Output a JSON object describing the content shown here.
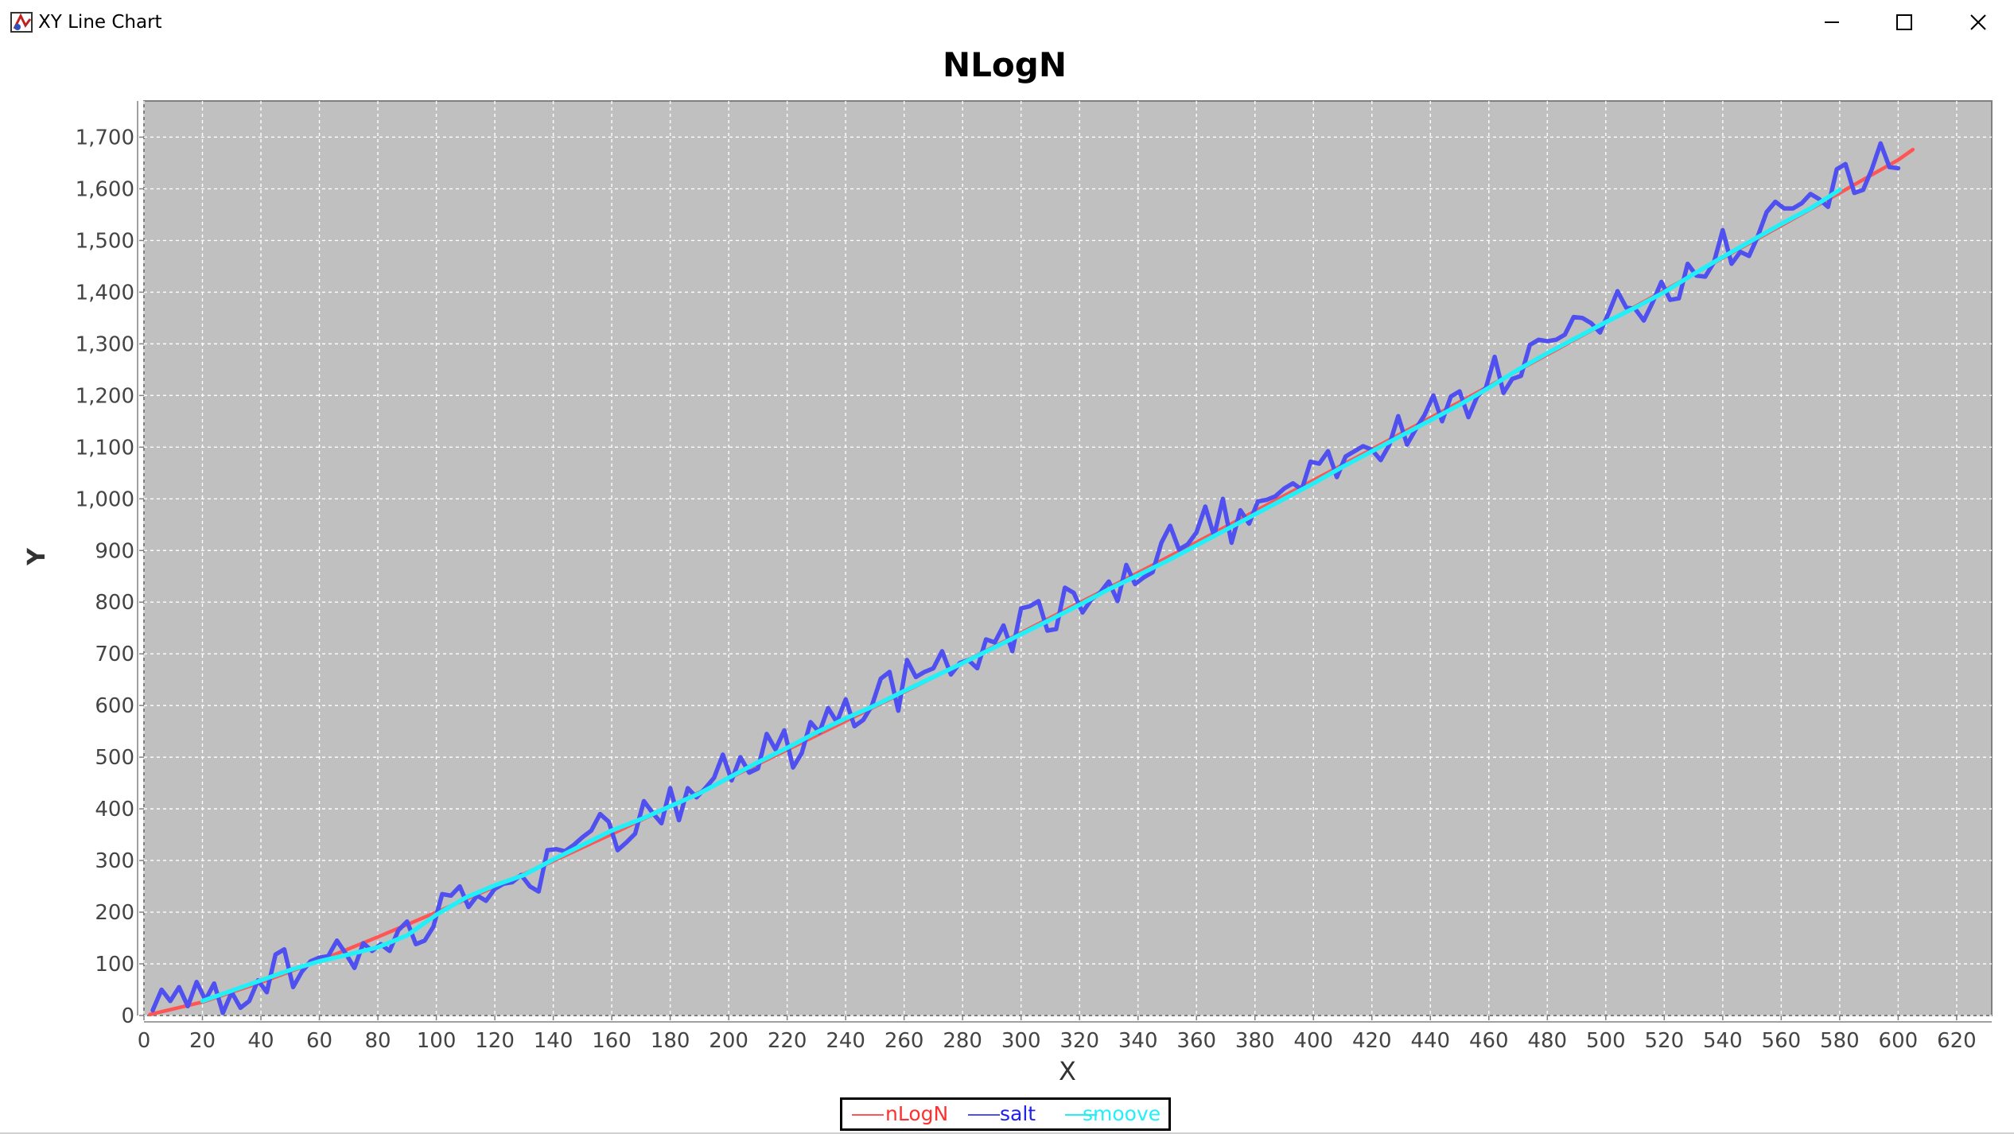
{
  "window": {
    "title": "XY Line Chart",
    "icon": "java-app-icon",
    "controls": [
      "minimize-icon",
      "maximize-icon",
      "close-icon"
    ]
  },
  "chart_data": {
    "type": "line",
    "title": "NLogN",
    "xlabel": "X",
    "ylabel": "Y",
    "xlim": [
      0,
      632
    ],
    "ylim": [
      0,
      1770
    ],
    "x_ticks": [
      0,
      20,
      40,
      60,
      80,
      100,
      120,
      140,
      160,
      180,
      200,
      220,
      240,
      260,
      280,
      300,
      320,
      340,
      360,
      380,
      400,
      420,
      440,
      460,
      480,
      500,
      520,
      540,
      560,
      580,
      600,
      620
    ],
    "y_ticks": [
      0,
      100,
      200,
      300,
      400,
      500,
      600,
      700,
      800,
      900,
      1000,
      1100,
      1200,
      1300,
      1400,
      1500,
      1600,
      1700
    ],
    "y_tick_labels": [
      "0",
      "100",
      "200",
      "300",
      "400",
      "500",
      "600",
      "700",
      "800",
      "900",
      "1,000",
      "1,100",
      "1,200",
      "1,300",
      "1,400",
      "1,500",
      "1,600",
      "1,700"
    ],
    "grid": true,
    "background": "#c0c0c0",
    "legend_position": "bottom",
    "series": [
      {
        "name": "nLogN",
        "color": "#ff5555",
        "x": [
          2,
          20,
          40,
          60,
          80,
          100,
          120,
          140,
          160,
          180,
          200,
          220,
          240,
          260,
          280,
          300,
          320,
          340,
          360,
          380,
          400,
          420,
          440,
          460,
          480,
          500,
          520,
          540,
          560,
          580,
          600,
          605
        ],
        "values": [
          2,
          26,
          64,
          106,
          152,
          200,
          249,
          299,
          351,
          405,
          459,
          514,
          570,
          626,
          683,
          741,
          799,
          857,
          916,
          976,
          1036,
          1096,
          1157,
          1218,
          1279,
          1341,
          1403,
          1466,
          1529,
          1592,
          1656,
          1676
        ]
      },
      {
        "name": "salt",
        "color": "#5050f0",
        "x": [
          3,
          6,
          9,
          12,
          15,
          18,
          21,
          24,
          27,
          30,
          33,
          36,
          39,
          42,
          45,
          48,
          51,
          54,
          57,
          60,
          63,
          66,
          69,
          72,
          75,
          78,
          81,
          84,
          87,
          90,
          93,
          96,
          99,
          102,
          105,
          108,
          111,
          114,
          117,
          120,
          123,
          126,
          129,
          132,
          135,
          138,
          141,
          144,
          147,
          150,
          153,
          156,
          159,
          162,
          165,
          168,
          171,
          174,
          177,
          180,
          183,
          186,
          189,
          192,
          195,
          198,
          201,
          204,
          207,
          210,
          213,
          216,
          219,
          222,
          225,
          228,
          231,
          234,
          237,
          240,
          243,
          246,
          249,
          252,
          255,
          258,
          261,
          264,
          267,
          270,
          273,
          276,
          279,
          282,
          285,
          288,
          291,
          294,
          297,
          300,
          303,
          306,
          309,
          312,
          315,
          318,
          321,
          324,
          327,
          330,
          333,
          336,
          339,
          342,
          345,
          348,
          351,
          354,
          357,
          360,
          363,
          366,
          369,
          372,
          375,
          378,
          381,
          384,
          387,
          390,
          393,
          396,
          399,
          402,
          405,
          408,
          411,
          414,
          417,
          420,
          423,
          426,
          429,
          432,
          435,
          438,
          441,
          444,
          447,
          450,
          453,
          456,
          459,
          462,
          465,
          468,
          471,
          474,
          477,
          480,
          483,
          486,
          489,
          492,
          495,
          498,
          501,
          504,
          507,
          510,
          513,
          516,
          519,
          522,
          525,
          528,
          531,
          534,
          537,
          540,
          543,
          546,
          549,
          552,
          555,
          558,
          561,
          564,
          567,
          570,
          573,
          576,
          579,
          582,
          585,
          588,
          591,
          594,
          597,
          600
        ],
        "values": [
          10,
          50,
          28,
          55,
          18,
          65,
          30,
          62,
          5,
          45,
          15,
          28,
          68,
          45,
          118,
          128,
          55,
          85,
          105,
          112,
          115,
          145,
          120,
          92,
          140,
          125,
          138,
          125,
          165,
          182,
          138,
          145,
          172,
          235,
          232,
          250,
          210,
          232,
          222,
          245,
          255,
          258,
          272,
          250,
          240,
          320,
          322,
          318,
          330,
          345,
          358,
          390,
          375,
          320,
          335,
          352,
          415,
          392,
          372,
          440,
          378,
          440,
          422,
          440,
          460,
          505,
          455,
          500,
          470,
          478,
          545,
          515,
          552,
          480,
          508,
          568,
          548,
          595,
          568,
          612,
          560,
          572,
          600,
          652,
          665,
          590,
          688,
          655,
          665,
          672,
          705,
          660,
          682,
          688,
          672,
          728,
          722,
          755,
          705,
          788,
          792,
          802,
          745,
          748,
          828,
          818,
          780,
          805,
          818,
          840,
          802,
          872,
          835,
          848,
          858,
          915,
          948,
          902,
          912,
          935,
          985,
          928,
          1000,
          915,
          978,
          952,
          995,
          998,
          1005,
          1020,
          1030,
          1018,
          1072,
          1068,
          1092,
          1042,
          1082,
          1092,
          1102,
          1095,
          1075,
          1105,
          1160,
          1105,
          1135,
          1162,
          1200,
          1150,
          1198,
          1208,
          1158,
          1198,
          1215,
          1275,
          1205,
          1232,
          1238,
          1298,
          1308,
          1305,
          1308,
          1318,
          1352,
          1350,
          1340,
          1322,
          1360,
          1402,
          1370,
          1368,
          1345,
          1380,
          1420,
          1385,
          1388,
          1455,
          1432,
          1430,
          1458,
          1520,
          1455,
          1478,
          1470,
          1508,
          1555,
          1575,
          1562,
          1562,
          1572,
          1590,
          1580,
          1565,
          1638,
          1648,
          1592,
          1598,
          1638,
          1688,
          1642,
          1640
        ]
      },
      {
        "name": "smoove",
        "color": "#22f0f8",
        "x": [
          20,
          30,
          40,
          50,
          60,
          70,
          80,
          90,
          100,
          110,
          120,
          130,
          140,
          150,
          160,
          170,
          180,
          190,
          200,
          210,
          220,
          230,
          240,
          250,
          260,
          270,
          280,
          290,
          300,
          310,
          320,
          330,
          340,
          350,
          360,
          370,
          380,
          390,
          400,
          410,
          420,
          430,
          440,
          450,
          460,
          470,
          480,
          490,
          500,
          510,
          520,
          530,
          540,
          550,
          560,
          570,
          580
        ],
        "values": [
          28,
          48,
          68,
          88,
          105,
          118,
          132,
          155,
          195,
          228,
          252,
          272,
          302,
          330,
          358,
          380,
          405,
          430,
          460,
          490,
          518,
          548,
          575,
          600,
          628,
          655,
          682,
          710,
          738,
          766,
          795,
          825,
          852,
          880,
          910,
          940,
          970,
          1000,
          1030,
          1062,
          1092,
          1122,
          1152,
          1182,
          1215,
          1250,
          1282,
          1312,
          1342,
          1370,
          1400,
          1435,
          1468,
          1500,
          1532,
          1562,
          1598
        ]
      }
    ]
  }
}
